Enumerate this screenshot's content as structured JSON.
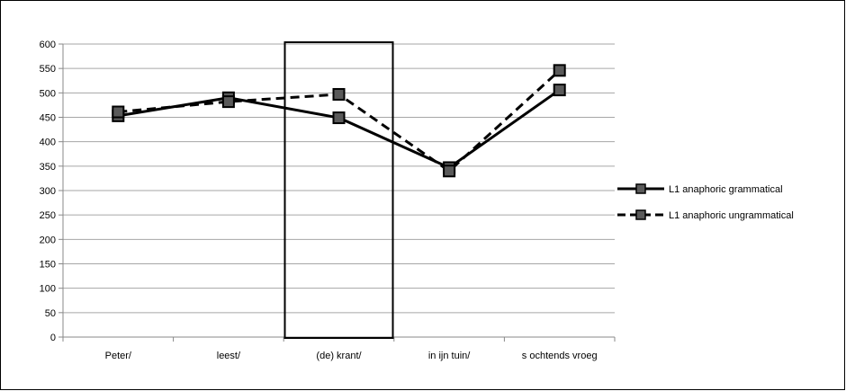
{
  "chart_data": {
    "type": "line",
    "categories": [
      "Peter/",
      "leest/",
      "(de) krant/",
      "in ijn tuin/",
      "s ochtends vroeg"
    ],
    "series": [
      {
        "name": "L1 anaphoric grammatical",
        "values": [
          453,
          490,
          449,
          347,
          506
        ],
        "style": "solid",
        "color": "#000000"
      },
      {
        "name": "L1 anaphoric ungrammatical",
        "values": [
          461,
          482,
          497,
          340,
          546
        ],
        "style": "dashed",
        "color": "#000000"
      }
    ],
    "yticks": [
      0,
      50,
      100,
      150,
      200,
      250,
      300,
      350,
      400,
      450,
      500,
      550,
      600
    ],
    "ylim": [
      0,
      600
    ],
    "grid": true,
    "highlight_category": "(de) krant/",
    "legend_position": "right",
    "title": "",
    "xlabel": "",
    "ylabel": ""
  }
}
